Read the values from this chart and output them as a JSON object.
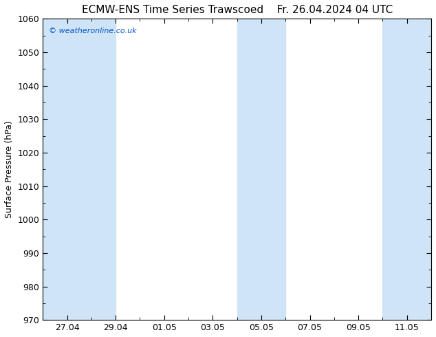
{
  "title_left": "ECMW-ENS Time Series Trawscoed",
  "title_right": "Fr. 26.04.2024 04 UTC",
  "ylabel": "Surface Pressure (hPa)",
  "watermark": "© weatheronline.co.uk",
  "watermark_color": "#0055cc",
  "ylim": [
    970,
    1060
  ],
  "yticks": [
    970,
    980,
    990,
    1000,
    1010,
    1020,
    1030,
    1040,
    1050,
    1060
  ],
  "xtick_labels": [
    "27.04",
    "29.04",
    "01.05",
    "03.05",
    "05.05",
    "07.05",
    "09.05",
    "11.05"
  ],
  "background_color": "#ffffff",
  "shaded_color": "#d0e4f7",
  "title_fontsize": 11,
  "axis_fontsize": 9,
  "ylabel_fontsize": 9,
  "watermark_fontsize": 8
}
